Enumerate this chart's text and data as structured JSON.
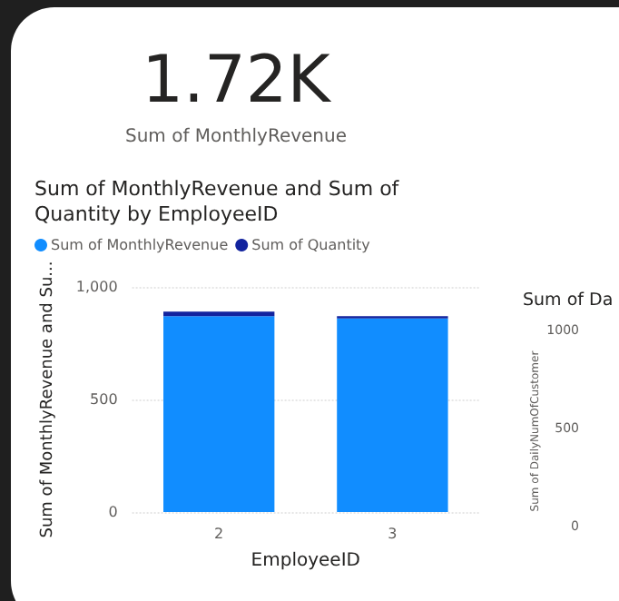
{
  "chart_data": [
    {
      "type": "other",
      "title": "1.72K",
      "subtitle": "Sum of MonthlyRevenue"
    },
    {
      "type": "bar",
      "title": "Sum of MonthlyRevenue and Sum of Quantity by EmployeeID",
      "xlabel": "EmployeeID",
      "ylabel": "Sum of MonthlyRevenue and Su...",
      "categories": [
        "2",
        "3"
      ],
      "stacked": true,
      "legend": "top left",
      "grid": "y",
      "ylim": [
        0,
        1000
      ],
      "yticks": [
        0,
        500,
        {
          "value": 1000,
          "label": "1,000"
        }
      ],
      "series": [
        {
          "name": "Sum of MonthlyRevenue",
          "color": "#118dff",
          "values": [
            870,
            860
          ]
        },
        {
          "name": "Sum of Quantity",
          "color": "#12239e",
          "values": [
            20,
            10
          ]
        }
      ]
    },
    {
      "type": "other",
      "title": "Sum of Da",
      "ylabel": "Sum of DailyNumOfCustomer",
      "annotations": [
        "1000",
        "500",
        "0"
      ]
    }
  ]
}
